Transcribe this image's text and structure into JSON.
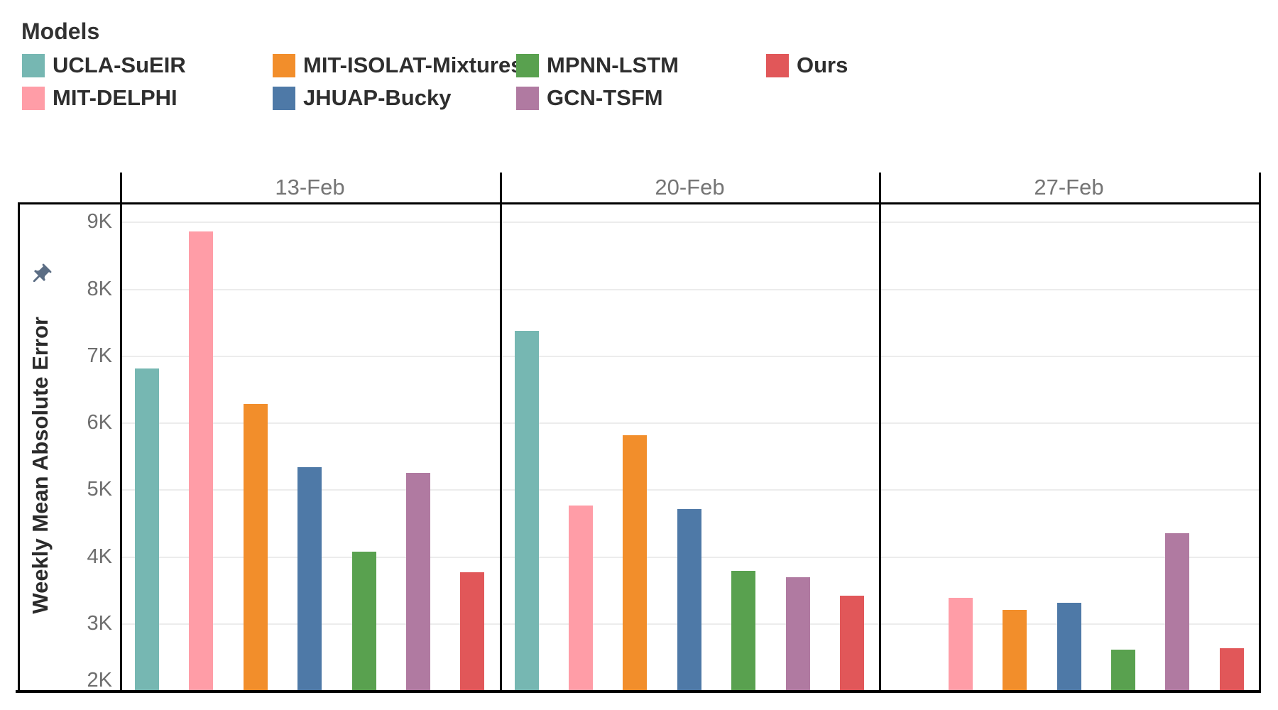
{
  "legend": {
    "title": "Models",
    "items": [
      {
        "label": "UCLA-SuEIR",
        "color": "#76b7b2",
        "col": 0,
        "row": 0
      },
      {
        "label": "MIT-DELPHI",
        "color": "#ff9da7",
        "col": 0,
        "row": 1
      },
      {
        "label": "MIT-ISOLAT-Mixtures",
        "color": "#f28e2b",
        "col": 1,
        "row": 0
      },
      {
        "label": "JHUAP-Bucky",
        "color": "#4e79a7",
        "col": 1,
        "row": 1
      },
      {
        "label": "MPNN-LSTM",
        "color": "#59a14f",
        "col": 2,
        "row": 0
      },
      {
        "label": "GCN-TSFM",
        "color": "#b07aa1",
        "col": 2,
        "row": 1
      },
      {
        "label": "Ours",
        "color": "#e15759",
        "col": 3,
        "row": 0
      }
    ]
  },
  "axis": {
    "ylabel": "Weekly Mean Absolute Error",
    "tick_labels": [
      "2K",
      "3K",
      "4K",
      "5K",
      "6K",
      "7K",
      "8K",
      "9K"
    ],
    "pin_color": "#5b6d84"
  },
  "chart_data": {
    "type": "bar",
    "title": "",
    "categories": [
      "13-Feb",
      "20-Feb",
      "27-Feb"
    ],
    "series": [
      {
        "name": "UCLA-SuEIR",
        "color": "#76b7b2",
        "values": [
          6820,
          7380,
          null
        ]
      },
      {
        "name": "MIT-DELPHI",
        "color": "#ff9da7",
        "values": [
          8870,
          4770,
          3390
        ]
      },
      {
        "name": "MIT-ISOLAT-Mixtures",
        "color": "#f28e2b",
        "values": [
          6290,
          5820,
          3210
        ]
      },
      {
        "name": "JHUAP-Bucky",
        "color": "#4e79a7",
        "values": [
          5340,
          4720,
          3320
        ]
      },
      {
        "name": "MPNN-LSTM",
        "color": "#59a14f",
        "values": [
          4080,
          3790,
          2620
        ]
      },
      {
        "name": "GCN-TSFM",
        "color": "#b07aa1",
        "values": [
          5260,
          3700,
          4360
        ]
      },
      {
        "name": "Ours",
        "color": "#e15759",
        "values": [
          3770,
          3420,
          2640
        ]
      }
    ],
    "xlabel": "",
    "ylabel": "Weekly Mean Absolute Error",
    "ylim": [
      2000,
      9300
    ],
    "yticks": [
      2000,
      3000,
      4000,
      5000,
      6000,
      7000,
      8000,
      9000
    ],
    "grid": "horizontal",
    "legend_position": "top-left"
  }
}
